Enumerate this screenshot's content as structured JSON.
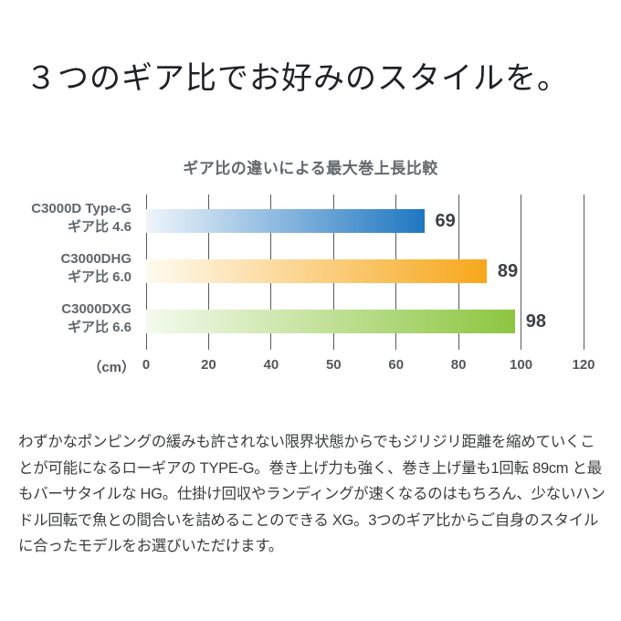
{
  "heading": "３つのギア比でお好みのスタイルを。",
  "chart_data": {
    "type": "bar",
    "orientation": "horizontal",
    "title": "ギア比の違いによる最大巻上長比較",
    "unit_label": "（cm）",
    "x_ticks": [
      0,
      20,
      40,
      50,
      60,
      80,
      100,
      120
    ],
    "grid": true,
    "legend": false,
    "categories": [
      "C3000D Type-G",
      "C3000DHG",
      "C3000DXG"
    ],
    "rows": [
      {
        "model": "C3000D Type-G",
        "gear_ratio": "ギア比 4.6",
        "value": 69,
        "gradient_from": "#eff5fb",
        "gradient_to": "#1e77c1"
      },
      {
        "model": "C3000DHG",
        "gear_ratio": "ギア比 6.0",
        "value": 89,
        "gradient_from": "#fefaf0",
        "gradient_to": "#f7a71b"
      },
      {
        "model": "C3000DXG",
        "gear_ratio": "ギア比 6.6",
        "value": 98,
        "gradient_from": "#f4faee",
        "gradient_to": "#8cc63f"
      }
    ]
  },
  "description": "わずかなポンピングの緩みも許されない限界状態からでもジリジリ距離を縮めていくことが可能になるローギアの TYPE-G。巻き上げ力も強く、巻き上げ量も1回転 89cm と最もバーサタイルな HG。仕掛け回収やランディングが速くなるのはもちろん、少ないハンドル回転で魚との間合いを詰めることのできる XG。3つのギア比からご自身のスタイルに合ったモデルをお選びいただけます。",
  "colors": {
    "gridline": "#565a5e",
    "heading_text": "#1f2126",
    "body_text": "#3a3c3e",
    "label_text": "#5f666c",
    "value_text": "#3d4043"
  }
}
